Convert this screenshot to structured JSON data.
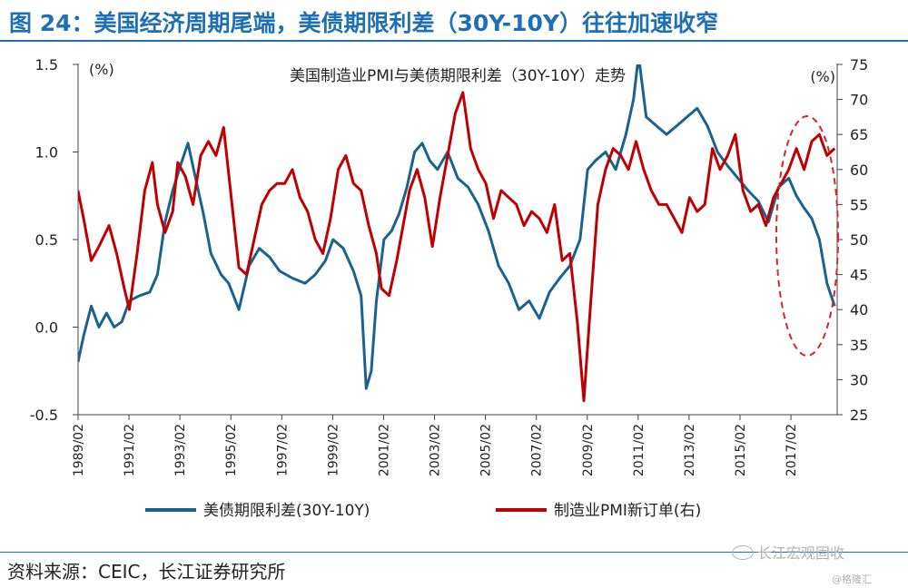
{
  "header": {
    "title": "图 24：美国经济周期尾端，美债期限利差（30Y-10Y）往往加速收窄"
  },
  "footer": {
    "source": "资料来源：CEIC，长江证券研究所",
    "brand": "长江宏观固收",
    "copyright": "@格隆汇"
  },
  "colors": {
    "spread": "#1a6391",
    "pmi": "#c00000",
    "heading": "#1f6fb5",
    "highlight": "#d62728"
  },
  "chart_data": {
    "type": "line",
    "title": "美国制造业PMI与美债期限利差（30Y-10Y）走势",
    "y_left_unit": "(%)",
    "y_right_unit": "(%)",
    "y_left_range": [
      -0.5,
      1.5
    ],
    "y_left_ticks": [
      "-0.5",
      "0.0",
      "0.5",
      "1.0",
      "1.5"
    ],
    "y_right_range": [
      25,
      75
    ],
    "y_right_ticks": [
      "25",
      "30",
      "35",
      "40",
      "45",
      "50",
      "55",
      "60",
      "65",
      "70",
      "75"
    ],
    "x_range": [
      1989.0833,
      2018.9
    ],
    "x_tick_labels": [
      "1989/02",
      "1991/02",
      "1993/02",
      "1995/02",
      "1997/02",
      "1999/02",
      "2001/02",
      "2003/02",
      "2005/02",
      "2007/02",
      "2009/02",
      "2011/02",
      "2013/02",
      "2015/02",
      "2017/02"
    ],
    "highlight": "2017-2018 dashed ellipse",
    "series": [
      {
        "name": "美债期限利差(30Y-10Y)",
        "axis": "left",
        "x": [
          1989.08,
          1989.3,
          1989.6,
          1989.9,
          1990.2,
          1990.5,
          1990.8,
          1991.1,
          1991.5,
          1991.9,
          1992.2,
          1992.5,
          1992.8,
          1993.1,
          1993.4,
          1993.7,
          1994.0,
          1994.3,
          1994.7,
          1995.0,
          1995.4,
          1995.8,
          1996.2,
          1996.6,
          1997.0,
          1997.5,
          1998.0,
          1998.4,
          1998.8,
          1999.1,
          1999.5,
          1999.9,
          2000.2,
          2000.4,
          2000.6,
          2000.8,
          2001.1,
          2001.4,
          2001.7,
          2002.0,
          2002.3,
          2002.6,
          2002.9,
          2003.2,
          2003.6,
          2004.0,
          2004.4,
          2004.8,
          2005.2,
          2005.6,
          2006.0,
          2006.4,
          2006.8,
          2007.2,
          2007.6,
          2008.0,
          2008.4,
          2008.8,
          2009.1,
          2009.4,
          2009.8,
          2010.2,
          2010.6,
          2010.9,
          2011.1,
          2011.4,
          2011.8,
          2012.2,
          2012.6,
          2013.0,
          2013.4,
          2013.8,
          2014.2,
          2014.6,
          2015.0,
          2015.4,
          2015.8,
          2016.2,
          2016.6,
          2017.0,
          2017.3,
          2017.6,
          2017.9,
          2018.2,
          2018.5,
          2018.8
        ],
        "values": [
          -0.2,
          -0.05,
          0.12,
          0.0,
          0.08,
          0.0,
          0.03,
          0.15,
          0.18,
          0.2,
          0.3,
          0.6,
          0.78,
          0.92,
          1.05,
          0.85,
          0.65,
          0.42,
          0.3,
          0.25,
          0.1,
          0.35,
          0.45,
          0.4,
          0.32,
          0.28,
          0.25,
          0.3,
          0.38,
          0.5,
          0.45,
          0.32,
          0.18,
          -0.35,
          -0.25,
          0.15,
          0.5,
          0.55,
          0.65,
          0.8,
          1.0,
          1.05,
          0.95,
          0.9,
          1.0,
          0.85,
          0.8,
          0.7,
          0.55,
          0.35,
          0.25,
          0.1,
          0.15,
          0.05,
          0.2,
          0.28,
          0.35,
          0.5,
          0.9,
          0.95,
          1.0,
          0.9,
          1.1,
          1.3,
          1.55,
          1.2,
          1.15,
          1.1,
          1.15,
          1.2,
          1.25,
          1.15,
          1.0,
          0.92,
          0.85,
          0.78,
          0.72,
          0.6,
          0.8,
          0.85,
          0.75,
          0.68,
          0.62,
          0.5,
          0.25,
          0.12
        ]
      },
      {
        "name": "制造业PMI新订单(右)",
        "axis": "right",
        "x": [
          1989.08,
          1989.3,
          1989.6,
          1989.9,
          1990.3,
          1990.6,
          1990.9,
          1991.1,
          1991.4,
          1991.7,
          1992.0,
          1992.2,
          1992.5,
          1992.8,
          1993.0,
          1993.3,
          1993.6,
          1993.9,
          1994.2,
          1994.5,
          1994.8,
          1995.1,
          1995.4,
          1995.7,
          1996.0,
          1996.3,
          1996.6,
          1996.9,
          1997.2,
          1997.5,
          1997.8,
          1998.1,
          1998.4,
          1998.7,
          1999.0,
          1999.3,
          1999.6,
          1999.9,
          2000.2,
          2000.5,
          2000.8,
          2001.0,
          2001.3,
          2001.6,
          2001.9,
          2002.1,
          2002.4,
          2002.7,
          2003.0,
          2003.3,
          2003.6,
          2003.9,
          2004.2,
          2004.5,
          2004.8,
          2005.1,
          2005.4,
          2005.7,
          2006.0,
          2006.3,
          2006.6,
          2006.9,
          2007.2,
          2007.5,
          2007.8,
          2008.1,
          2008.4,
          2008.7,
          2008.95,
          2009.2,
          2009.5,
          2009.8,
          2010.1,
          2010.4,
          2010.7,
          2011.0,
          2011.3,
          2011.6,
          2011.9,
          2012.2,
          2012.5,
          2012.8,
          2013.1,
          2013.4,
          2013.7,
          2014.0,
          2014.3,
          2014.6,
          2014.9,
          2015.2,
          2015.5,
          2015.8,
          2016.1,
          2016.4,
          2016.7,
          2017.0,
          2017.3,
          2017.6,
          2017.9,
          2018.2,
          2018.5,
          2018.8
        ],
        "values": [
          57,
          53,
          47,
          49,
          52,
          48,
          43,
          40,
          48,
          57,
          61,
          55,
          51,
          54,
          61,
          59,
          55,
          62,
          64,
          62,
          66,
          56,
          46,
          45,
          50,
          55,
          57,
          58,
          58,
          60,
          56,
          54,
          50,
          48,
          53,
          60,
          62,
          58,
          57,
          52,
          48,
          43,
          42,
          47,
          53,
          57,
          60,
          56,
          49,
          56,
          62,
          68,
          71,
          63,
          60,
          58,
          53,
          57,
          56,
          55,
          52,
          54,
          53,
          51,
          55,
          47,
          48,
          38,
          27,
          40,
          55,
          60,
          63,
          62,
          60,
          64,
          60,
          57,
          55,
          55,
          53,
          51,
          56,
          54,
          55,
          63,
          60,
          62,
          65,
          57,
          54,
          55,
          52,
          56,
          58,
          60,
          63,
          60,
          64,
          65,
          62,
          63
        ]
      }
    ]
  }
}
